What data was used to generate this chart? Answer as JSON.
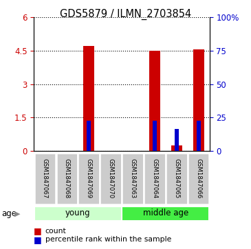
{
  "title": "GDS5879 / ILMN_2703854",
  "samples": [
    "GSM1847067",
    "GSM1847068",
    "GSM1847069",
    "GSM1847070",
    "GSM1847063",
    "GSM1847064",
    "GSM1847065",
    "GSM1847066"
  ],
  "groups": [
    {
      "name": "young",
      "indices": [
        0,
        1,
        2,
        3
      ],
      "color": "#ccffcc"
    },
    {
      "name": "middle age",
      "indices": [
        4,
        5,
        6,
        7
      ],
      "color": "#44ee44"
    }
  ],
  "group_label": "age",
  "count_values": [
    0,
    0,
    4.72,
    0,
    0,
    4.5,
    0.22,
    4.55
  ],
  "percentile_values": [
    0,
    0,
    22.5,
    0,
    0,
    22.5,
    16.5,
    22.5
  ],
  "ylim_left": [
    0,
    6
  ],
  "ylim_right": [
    0,
    100
  ],
  "left_ticks": [
    0,
    1.5,
    3,
    4.5,
    6
  ],
  "right_ticks": [
    0,
    25,
    50,
    75,
    100
  ],
  "left_tick_labels": [
    "0",
    "1.5",
    "3",
    "4.5",
    "6"
  ],
  "right_tick_labels": [
    "0",
    "25",
    "50",
    "75",
    "100%"
  ],
  "count_color": "#cc0000",
  "percentile_color": "#0000cc",
  "count_bar_width": 0.5,
  "pct_bar_width": 0.2,
  "sample_box_color": "#cccccc",
  "background_color": "#ffffff"
}
